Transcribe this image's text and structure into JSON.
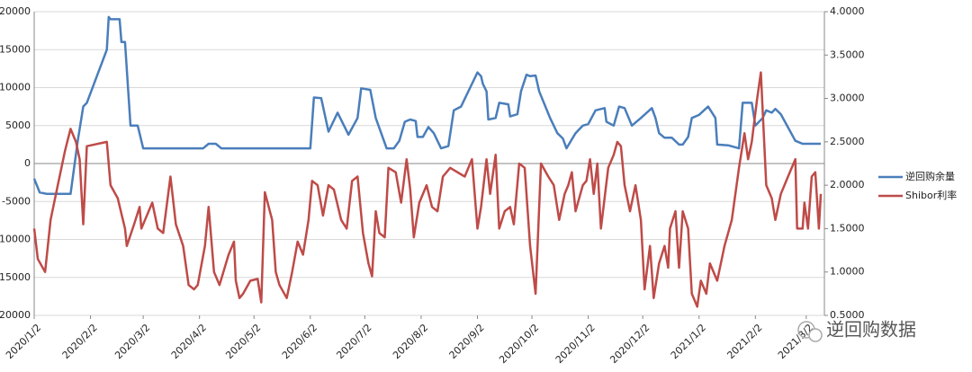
{
  "chart_data": {
    "type": "line",
    "xlim": [
      "2020/1/2",
      "2021/3/12"
    ],
    "xticks": [
      "2020/1/2",
      "2020/2/2",
      "2020/3/2",
      "2020/4/2",
      "2020/5/2",
      "2020/6/2",
      "2020/7/2",
      "2020/8/2",
      "2020/9/2",
      "2020/10/2",
      "2020/11/2",
      "2020/12/2",
      "2021/1/2",
      "2021/2/2",
      "2021/3/2"
    ],
    "ylim": [
      -20000,
      20000
    ],
    "yticks": [
      -20000,
      -15000,
      -10000,
      -5000,
      0,
      5000,
      10000,
      15000,
      20000
    ],
    "y2lim": [
      0.5,
      4.0
    ],
    "y2ticks": [
      {
        "value": 0.5,
        "label": "0.5000"
      },
      {
        "value": 1.0,
        "label": "1.0000"
      },
      {
        "value": 1.5,
        "label": "1.5000"
      },
      {
        "value": 2.0,
        "label": "2.0000"
      },
      {
        "value": 2.5,
        "label": "2.5000"
      },
      {
        "value": 3.0,
        "label": "3.0000"
      },
      {
        "value": 3.5,
        "label": "3.5000"
      },
      {
        "value": 4.0,
        "label": "4.0000"
      }
    ],
    "grid": true,
    "legend": "right",
    "watermark": "逆回购数据",
    "series": [
      {
        "name": "逆回购余量",
        "color": "#4a7ebb",
        "x": [
          "2020/1/2",
          "2020/1/5",
          "2020/1/9",
          "2020/1/22",
          "2020/1/26",
          "2020/1/29",
          "2020/1/31",
          "2020/2/11",
          "2020/2/12",
          "2020/2/13",
          "2020/2/18",
          "2020/2/19",
          "2020/2/21",
          "2020/2/24",
          "2020/2/28",
          "2020/3/2",
          "2020/4/4",
          "2020/4/7",
          "2020/4/11",
          "2020/4/14",
          "2020/6/2",
          "2020/6/4",
          "2020/6/8",
          "2020/6/12",
          "2020/6/17",
          "2020/6/23",
          "2020/6/28",
          "2020/6/30",
          "2020/7/5",
          "2020/7/8",
          "2020/7/14",
          "2020/7/18",
          "2020/7/21",
          "2020/7/24",
          "2020/7/27",
          "2020/7/30",
          "2020/7/31",
          "2020/8/3",
          "2020/8/6",
          "2020/8/9",
          "2020/8/13",
          "2020/8/17",
          "2020/8/20",
          "2020/8/24",
          "2020/8/29",
          "2020/9/1",
          "2020/9/2",
          "2020/9/4",
          "2020/9/5",
          "2020/9/7",
          "2020/9/8",
          "2020/9/12",
          "2020/9/14",
          "2020/9/19",
          "2020/9/20",
          "2020/9/24",
          "2020/9/26",
          "2020/9/29",
          "2020/10/1",
          "2020/10/4",
          "2020/10/6",
          "2020/10/12",
          "2020/10/16",
          "2020/10/19",
          "2020/10/21",
          "2020/10/26",
          "2020/10/30",
          "2020/11/2",
          "2020/11/6",
          "2020/11/11",
          "2020/11/12",
          "2020/11/16",
          "2020/11/19",
          "2020/11/22",
          "2020/11/26",
          "2020/12/1",
          "2020/12/7",
          "2020/12/9",
          "2020/12/11",
          "2020/12/14",
          "2020/12/18",
          "2020/12/22",
          "2020/12/24",
          "2020/12/27",
          "2020/12/29",
          "2021/1/2",
          "2021/1/7",
          "2021/1/11",
          "2021/1/12",
          "2021/1/18",
          "2021/1/24",
          "2021/1/26",
          "2021/1/31",
          "2021/2/2",
          "2021/2/6",
          "2021/2/8",
          "2021/2/11",
          "2021/2/13",
          "2021/2/16",
          "2021/2/19",
          "2021/2/24",
          "2021/2/28",
          "2021/3/3",
          "2021/3/10"
        ],
        "values": [
          -2000,
          -3800,
          -4000,
          -4000,
          3000,
          7500,
          8000,
          15000,
          19300,
          19000,
          19000,
          16000,
          16000,
          5000,
          5000,
          2000,
          2000,
          2600,
          2600,
          2000,
          2000,
          8700,
          8600,
          4200,
          6700,
          3800,
          6000,
          9900,
          9700,
          6000,
          2000,
          2000,
          3000,
          5500,
          5800,
          5600,
          3500,
          3500,
          4800,
          4000,
          2000,
          2300,
          7000,
          7500,
          10000,
          11500,
          12000,
          11500,
          10500,
          9500,
          5800,
          6000,
          8000,
          7800,
          6200,
          6500,
          9500,
          11700,
          11500,
          11600,
          9500,
          6000,
          4000,
          3300,
          2000,
          4000,
          5000,
          5200,
          7000,
          7300,
          5500,
          5000,
          7500,
          7300,
          5000,
          6000,
          7300,
          6000,
          4000,
          3400,
          3400,
          2500,
          2500,
          3500,
          6000,
          6400,
          7500,
          6000,
          2500,
          2400,
          2000,
          8000,
          8000,
          5000,
          6000,
          7000,
          6700,
          7200,
          6500,
          5200,
          3000,
          2600,
          2600,
          2600
        ]
      },
      {
        "name": "Shibor利率",
        "color": "#be4b48",
        "axis": "y2",
        "x": [
          "2020/1/2",
          "2020/1/4",
          "2020/1/8",
          "2020/1/11",
          "2020/1/15",
          "2020/1/19",
          "2020/1/22",
          "2020/1/25",
          "2020/1/27",
          "2020/1/29",
          "2020/1/31",
          "2020/2/11",
          "2020/2/13",
          "2020/2/17",
          "2020/2/21",
          "2020/2/22",
          "2020/2/26",
          "2020/2/29",
          "2020/3/1",
          "2020/3/3",
          "2020/3/7",
          "2020/3/10",
          "2020/3/13",
          "2020/3/17",
          "2020/3/20",
          "2020/3/24",
          "2020/3/27",
          "2020/3/30",
          "2020/4/1",
          "2020/4/5",
          "2020/4/7",
          "2020/4/10",
          "2020/4/13",
          "2020/4/18",
          "2020/4/21",
          "2020/4/22",
          "2020/4/24",
          "2020/4/26",
          "2020/4/30",
          "2020/5/4",
          "2020/5/6",
          "2020/5/8",
          "2020/5/12",
          "2020/5/14",
          "2020/5/16",
          "2020/5/20",
          "2020/5/23",
          "2020/5/26",
          "2020/5/29",
          "2020/6/1",
          "2020/6/3",
          "2020/6/6",
          "2020/6/9",
          "2020/6/12",
          "2020/6/15",
          "2020/6/19",
          "2020/6/22",
          "2020/6/25",
          "2020/6/28",
          "2020/7/1",
          "2020/7/4",
          "2020/7/6",
          "2020/7/8",
          "2020/7/10",
          "2020/7/13",
          "2020/7/15",
          "2020/7/19",
          "2020/7/22",
          "2020/7/25",
          "2020/7/27",
          "2020/7/29",
          "2020/8/1",
          "2020/8/5",
          "2020/8/8",
          "2020/8/11",
          "2020/8/14",
          "2020/8/18",
          "2020/8/22",
          "2020/8/26",
          "2020/8/30",
          "2020/9/2",
          "2020/9/4",
          "2020/9/7",
          "2020/9/9",
          "2020/9/12",
          "2020/9/14",
          "2020/9/17",
          "2020/9/20",
          "2020/9/22",
          "2020/9/25",
          "2020/9/28",
          "2020/10/1",
          "2020/10/4",
          "2020/10/7",
          "2020/10/11",
          "2020/10/14",
          "2020/10/17",
          "2020/10/20",
          "2020/10/22",
          "2020/10/24",
          "2020/10/26",
          "2020/10/30",
          "2020/11/1",
          "2020/11/3",
          "2020/11/5",
          "2020/11/7",
          "2020/11/9",
          "2020/11/13",
          "2020/11/16",
          "2020/11/18",
          "2020/11/20",
          "2020/11/22",
          "2020/11/25",
          "2020/11/28",
          "2020/12/1",
          "2020/12/3",
          "2020/12/6",
          "2020/12/8",
          "2020/12/11",
          "2020/12/14",
          "2020/12/16",
          "2020/12/17",
          "2020/12/20",
          "2020/12/22",
          "2020/12/24",
          "2020/12/27",
          "2020/12/29",
          "2021/1/1",
          "2021/1/3",
          "2021/1/6",
          "2021/1/8",
          "2021/1/12",
          "2021/1/16",
          "2021/1/20",
          "2021/1/24",
          "2021/1/27",
          "2021/1/29",
          "2021/1/31",
          "2021/2/3",
          "2021/2/5",
          "2021/2/8",
          "2021/2/11",
          "2021/2/13",
          "2021/2/16",
          "2021/2/20",
          "2021/2/24",
          "2021/2/25",
          "2021/2/28",
          "2021/3/1",
          "2021/3/3",
          "2021/3/5",
          "2021/3/7",
          "2021/3/9",
          "2021/3/10"
        ],
        "values": [
          1.5,
          1.15,
          1.0,
          1.6,
          2.0,
          2.4,
          2.65,
          2.5,
          2.3,
          1.55,
          2.45,
          2.5,
          2.0,
          1.85,
          1.5,
          1.3,
          1.55,
          1.75,
          1.5,
          1.6,
          1.8,
          1.5,
          1.45,
          2.1,
          1.55,
          1.3,
          0.85,
          0.8,
          0.85,
          1.3,
          1.75,
          1.0,
          0.85,
          1.2,
          1.35,
          0.9,
          0.7,
          0.75,
          0.9,
          0.92,
          0.65,
          1.92,
          1.6,
          1.0,
          0.85,
          0.7,
          1.0,
          1.35,
          1.2,
          1.6,
          2.05,
          2.0,
          1.65,
          2.0,
          1.95,
          1.6,
          1.5,
          2.05,
          2.1,
          1.45,
          1.1,
          0.95,
          1.7,
          1.45,
          1.4,
          2.2,
          2.15,
          1.8,
          2.3,
          1.95,
          1.4,
          1.8,
          2.0,
          1.75,
          1.7,
          2.1,
          2.2,
          2.15,
          2.1,
          2.3,
          1.5,
          1.75,
          2.3,
          1.9,
          2.35,
          1.5,
          1.7,
          1.75,
          1.55,
          2.25,
          2.2,
          1.3,
          0.75,
          2.25,
          2.1,
          2.0,
          1.6,
          1.9,
          2.0,
          2.15,
          1.7,
          2.0,
          2.05,
          2.3,
          1.9,
          2.25,
          1.5,
          2.2,
          2.35,
          2.5,
          2.45,
          2.0,
          1.7,
          2.0,
          1.6,
          0.8,
          1.3,
          0.7,
          1.1,
          1.3,
          1.05,
          1.5,
          1.7,
          1.05,
          1.7,
          1.5,
          0.75,
          0.6,
          0.9,
          0.75,
          1.1,
          0.9,
          1.3,
          1.6,
          2.2,
          2.6,
          2.3,
          2.5,
          3.0,
          3.3,
          2.0,
          1.85,
          1.6,
          1.9,
          2.1,
          2.3,
          1.5,
          1.5,
          1.8,
          1.5,
          2.1,
          2.15,
          1.5,
          1.9
        ]
      }
    ]
  }
}
